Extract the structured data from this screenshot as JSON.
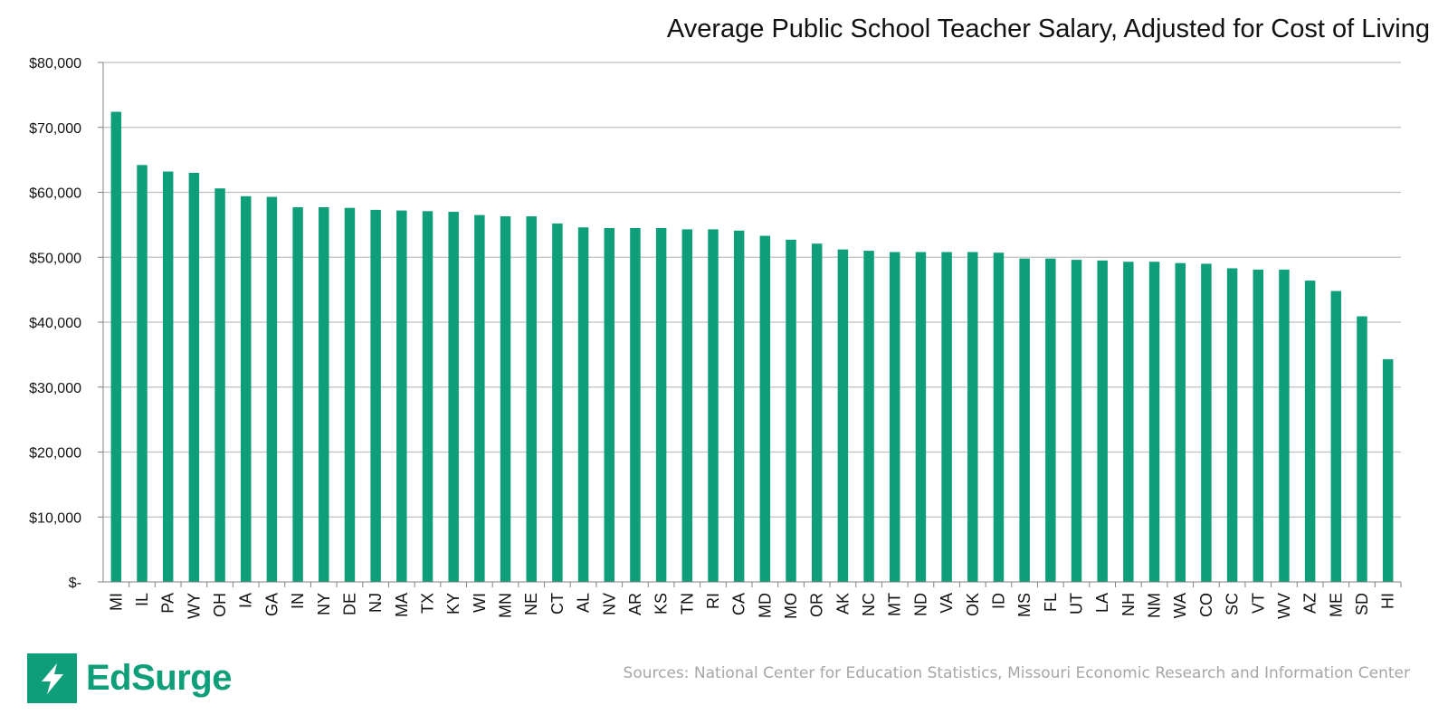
{
  "chart_data": {
    "type": "bar",
    "title": "Average Public School Teacher Salary, Adjusted for Cost of Living",
    "categories": [
      "MI",
      "IL",
      "PA",
      "WY",
      "OH",
      "IA",
      "GA",
      "IN",
      "NY",
      "DE",
      "NJ",
      "MA",
      "TX",
      "KY",
      "WI",
      "MN",
      "NE",
      "CT",
      "AL",
      "NV",
      "AR",
      "KS",
      "TN",
      "RI",
      "CA",
      "MD",
      "MO",
      "OR",
      "AK",
      "NC",
      "MT",
      "ND",
      "VA",
      "OK",
      "ID",
      "MS",
      "FL",
      "UT",
      "LA",
      "NH",
      "NM",
      "WA",
      "CO",
      "SC",
      "VT",
      "WV",
      "AZ",
      "ME",
      "SD",
      "HI"
    ],
    "values": [
      72400,
      64200,
      63200,
      63000,
      60600,
      59400,
      59300,
      57700,
      57700,
      57600,
      57300,
      57200,
      57100,
      57000,
      56500,
      56300,
      56300,
      55200,
      54600,
      54500,
      54500,
      54500,
      54300,
      54300,
      54100,
      53300,
      52700,
      52100,
      51200,
      51000,
      50800,
      50800,
      50800,
      50800,
      50700,
      49800,
      49800,
      49600,
      49500,
      49300,
      49300,
      49100,
      49000,
      48300,
      48100,
      48100,
      46400,
      44800,
      40900,
      34300
    ],
    "ylim": [
      0,
      80000
    ],
    "yticks": [
      0,
      10000,
      20000,
      30000,
      40000,
      50000,
      60000,
      70000,
      80000
    ],
    "ytick_labels": [
      "$-",
      "$10,000",
      "$20,000",
      "$30,000",
      "$40,000",
      "$50,000",
      "$60,000",
      "$70,000",
      "$80,000"
    ],
    "grid": true,
    "bar_color": "#0e9e7a",
    "grid_color": "#bfbfbf",
    "xlabel": "",
    "ylabel": ""
  },
  "branding": {
    "logo_text": "EdSurge",
    "logo_icon": "lightning-bolt-icon",
    "brand_color": "#0e9e7a"
  },
  "footer": {
    "source_note": "Sources: National Center for Education Statistics, Missouri Economic Research and Information Center"
  }
}
